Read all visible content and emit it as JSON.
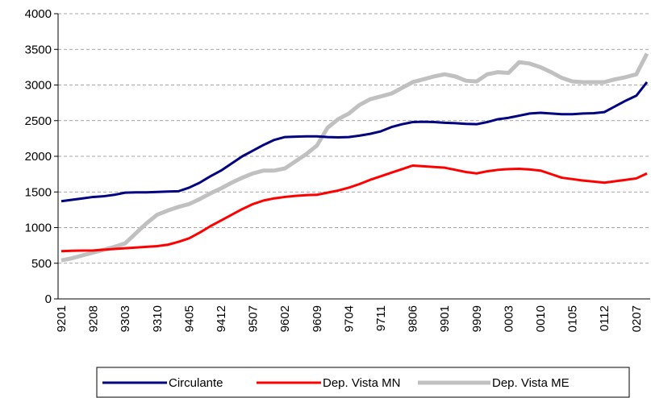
{
  "chart_data": {
    "type": "line",
    "categories": [
      "9201",
      null,
      null,
      "9208",
      null,
      null,
      "9303",
      null,
      null,
      "9310",
      null,
      null,
      "9405",
      null,
      null,
      "9412",
      null,
      null,
      "9507",
      null,
      null,
      "9602",
      null,
      null,
      "9609",
      null,
      null,
      "9704",
      null,
      null,
      "9711",
      null,
      null,
      "9806",
      null,
      null,
      "9901",
      null,
      null,
      "9909",
      null,
      null,
      "0003",
      null,
      null,
      "0010",
      null,
      null,
      "0105",
      null,
      null,
      "0112",
      null,
      null,
      "0207",
      null
    ],
    "series": [
      {
        "name": "Circulante",
        "color": "#000080",
        "values": [
          1370,
          1390,
          1410,
          1430,
          1440,
          1460,
          1490,
          1495,
          1495,
          1500,
          1505,
          1510,
          1560,
          1630,
          1720,
          1800,
          1900,
          2000,
          2080,
          2160,
          2230,
          2270,
          2275,
          2280,
          2280,
          2270,
          2265,
          2270,
          2290,
          2315,
          2350,
          2410,
          2450,
          2480,
          2485,
          2480,
          2470,
          2465,
          2455,
          2450,
          2480,
          2520,
          2540,
          2570,
          2600,
          2610,
          2600,
          2590,
          2590,
          2600,
          2605,
          2620,
          2700,
          2780,
          2850,
          3040
        ]
      },
      {
        "name": "Dep. Vista MN",
        "color": "#ff0000",
        "values": [
          670,
          675,
          678,
          680,
          690,
          700,
          710,
          720,
          730,
          740,
          760,
          800,
          850,
          930,
          1020,
          1100,
          1180,
          1260,
          1330,
          1380,
          1410,
          1430,
          1445,
          1455,
          1460,
          1490,
          1520,
          1560,
          1610,
          1670,
          1720,
          1770,
          1820,
          1870,
          1860,
          1850,
          1840,
          1810,
          1780,
          1760,
          1790,
          1810,
          1820,
          1825,
          1815,
          1800,
          1750,
          1700,
          1680,
          1660,
          1645,
          1630,
          1650,
          1670,
          1690,
          1760
        ]
      },
      {
        "name": "Dep. Vista ME",
        "color": "#c0c0c0",
        "values": [
          540,
          570,
          610,
          650,
          690,
          730,
          780,
          920,
          1060,
          1180,
          1240,
          1290,
          1330,
          1400,
          1480,
          1550,
          1630,
          1700,
          1760,
          1800,
          1800,
          1830,
          1930,
          2030,
          2150,
          2400,
          2520,
          2600,
          2720,
          2800,
          2840,
          2880,
          2960,
          3040,
          3080,
          3120,
          3150,
          3120,
          3060,
          3050,
          3150,
          3180,
          3170,
          3320,
          3300,
          3250,
          3180,
          3100,
          3050,
          3040,
          3040,
          3040,
          3080,
          3110,
          3150,
          3440
        ]
      }
    ],
    "ylim": [
      0,
      4000
    ],
    "yticks": [
      0,
      500,
      1000,
      1500,
      2000,
      2500,
      3000,
      3500,
      4000
    ],
    "grid": true
  }
}
